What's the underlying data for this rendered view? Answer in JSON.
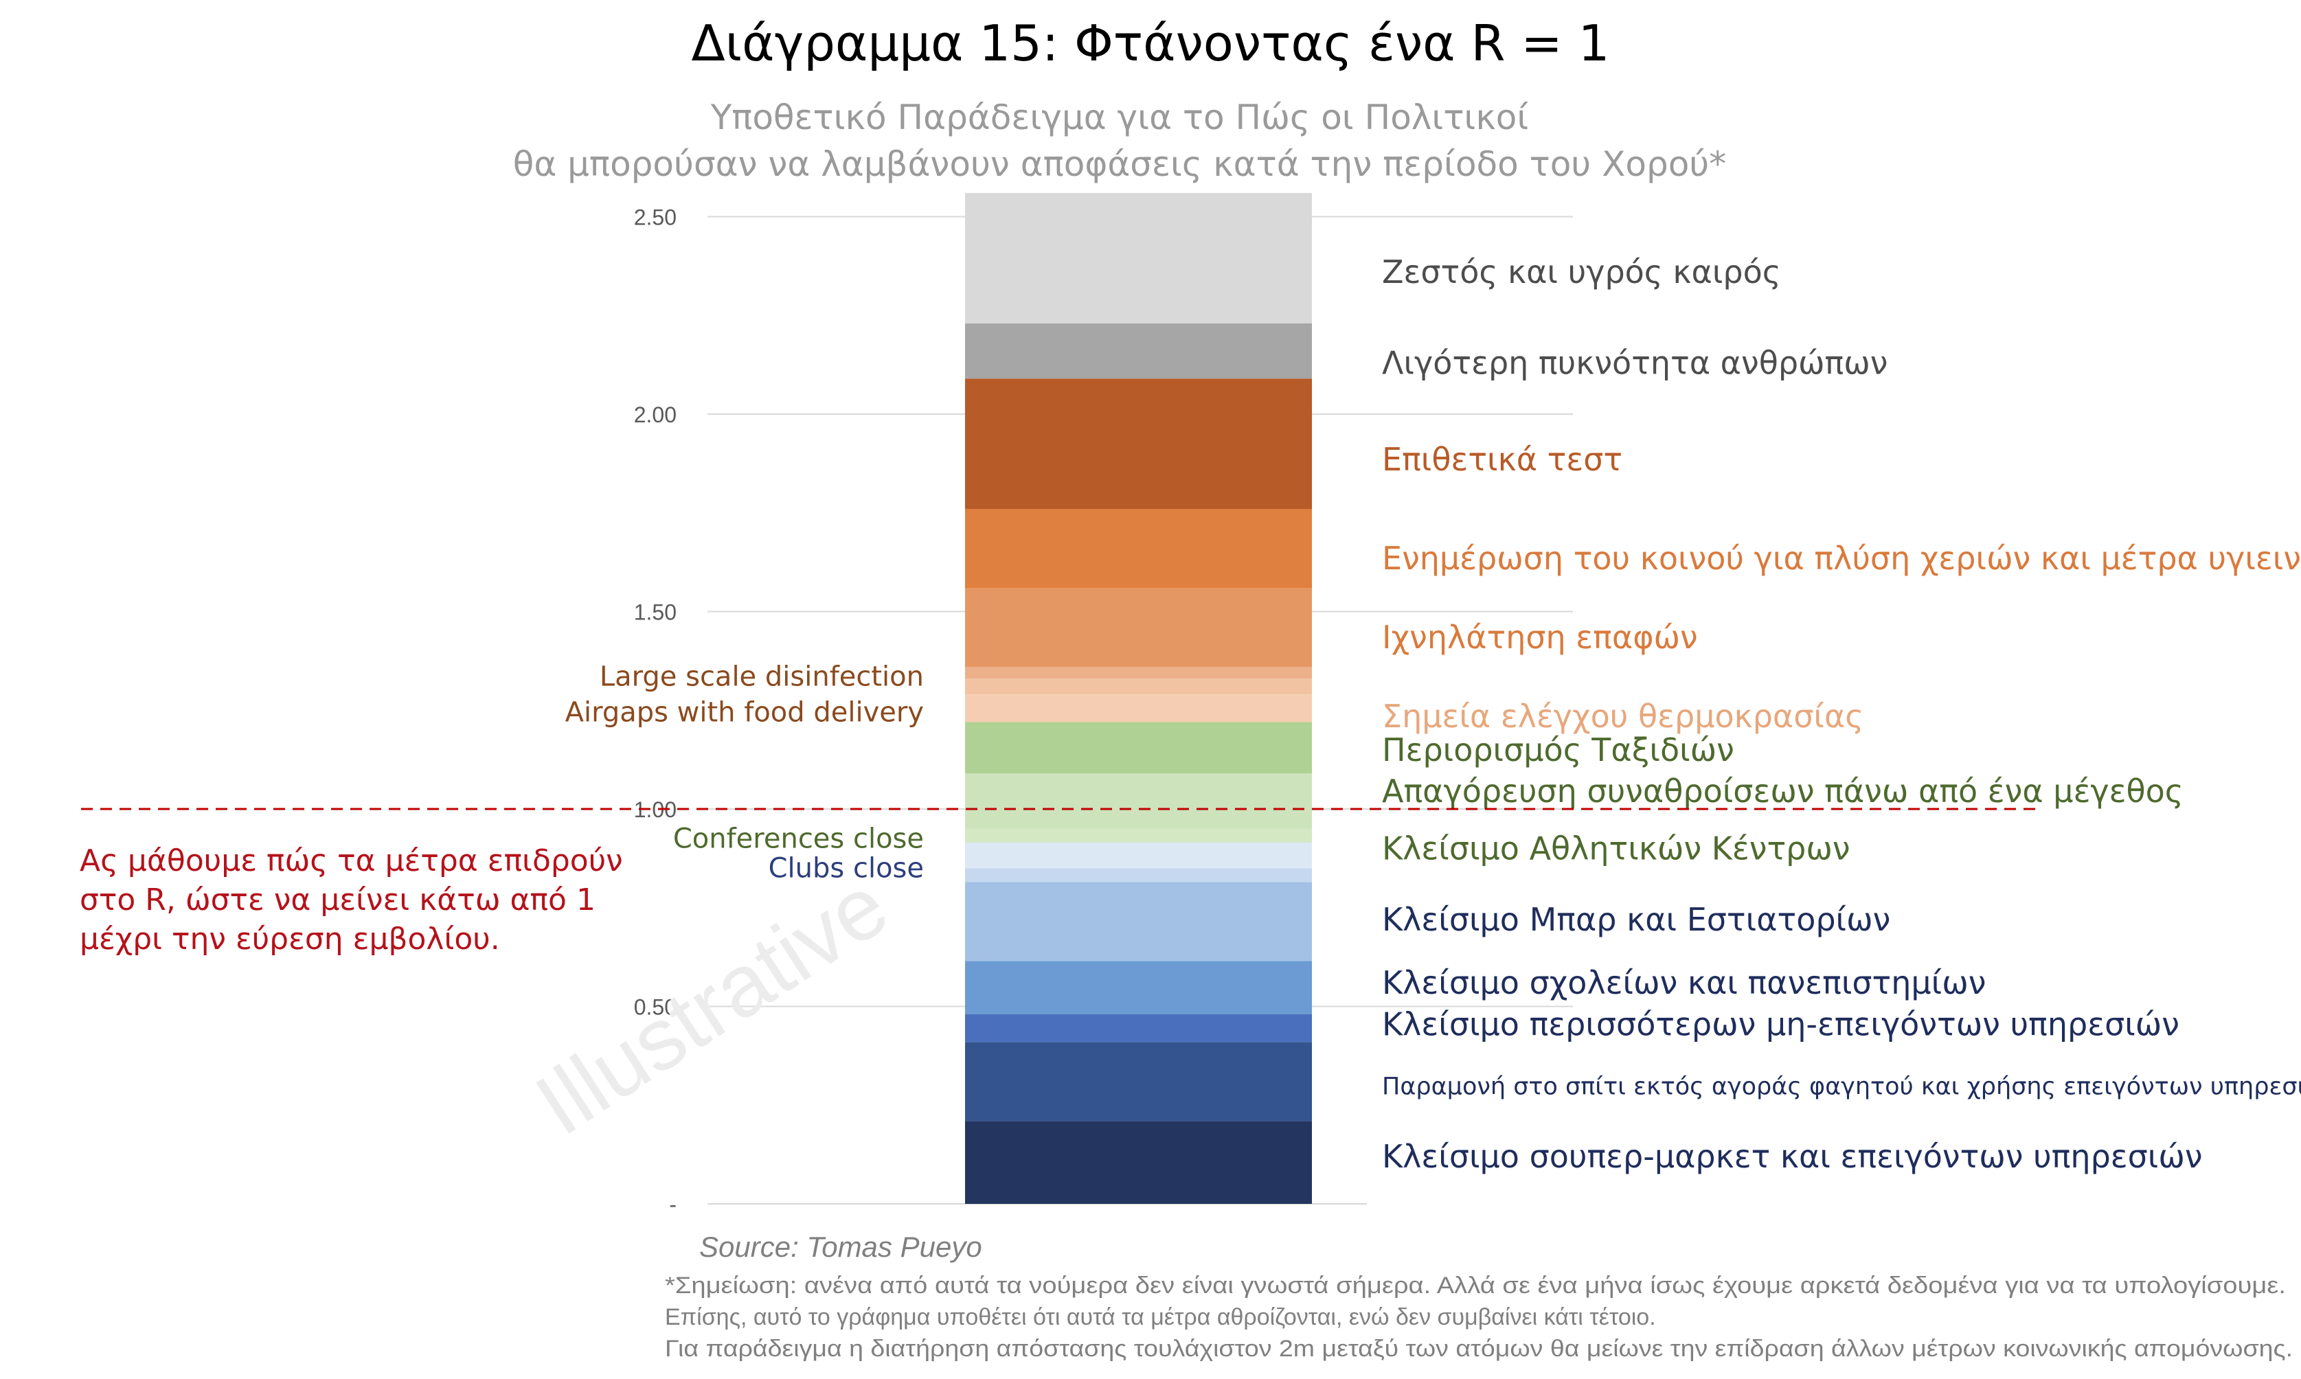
{
  "chart_data": {
    "type": "bar",
    "subtype": "stacked-single-column",
    "title": "Διάγραμμα 15: Φτάνοντας ένα R = 1",
    "subtitle_lines": [
      "Υποθετικό Παράδειγμα για το Πώς οι Πολιτικοί",
      "θα μπορούσαν να λαμβάνουν αποφάσεις κατά την περίοδο του Χορού*"
    ],
    "y_ticks": [
      {
        "value": 0,
        "label": "-"
      },
      {
        "value": 0.5,
        "label": "0.50"
      },
      {
        "value": 1.0,
        "label": "1.00"
      },
      {
        "value": 1.5,
        "label": "1.50"
      },
      {
        "value": 2.0,
        "label": "2.00"
      },
      {
        "value": 2.5,
        "label": "2.50"
      }
    ],
    "ylim": [
      0,
      2.5
    ],
    "grid": true,
    "threshold": {
      "value": 1.0,
      "color": "#c00000"
    },
    "segments": [
      {
        "name": "Κλείσιμο σουπερ-μαρκετ και επειγόντων υπηρεσιών",
        "from": 0.0,
        "to": 0.21,
        "color": "#24365f",
        "label_color": "#1f2d5c",
        "side": "right",
        "label_value": 0.12,
        "small": false
      },
      {
        "name": "Παραμονή στο σπίτι εκτός αγοράς φαγητού και χρήσης επειγόντων υπηρεσιών",
        "from": 0.21,
        "to": 0.41,
        "color": "#34548f",
        "label_color": "#1f2d5c",
        "side": "right",
        "label_value": 0.305,
        "small": true
      },
      {
        "name": "Κλείσιμο περισσότερων μη-επειγόντων υπηρεσιών",
        "from": 0.41,
        "to": 0.48,
        "color": "#4a70bd",
        "label_color": "#1f2d5c",
        "side": "right",
        "label_value": 0.455,
        "small": false
      },
      {
        "name": "Κλείσιμο σχολείων και πανεπιστημίων",
        "from": 0.48,
        "to": 0.615,
        "color": "#6b9bd2",
        "label_color": "#1f2d5c",
        "side": "right",
        "label_value": 0.56,
        "small": false
      },
      {
        "name": "Κλείσιμο Μπαρ και Εστιατορίων",
        "from": 0.615,
        "to": 0.815,
        "color": "#a3c1e5",
        "label_color": "#1f2d5c",
        "side": "right",
        "label_value": 0.72,
        "small": false
      },
      {
        "name": "Clubs close",
        "from": 0.815,
        "to": 0.85,
        "color": "#c5d8f0",
        "label_color": "#2d3f7c",
        "side": "left",
        "label_value": 0.855,
        "small": false
      },
      {
        "name": "Κλείσιμο Αθλητικών Κέντρων",
        "from": 0.85,
        "to": 0.915,
        "color": "#dce8f4",
        "label_color": "#4e6a2e",
        "side": "right",
        "label_value": 0.9,
        "small": false
      },
      {
        "name": "Conferences close",
        "from": 0.915,
        "to": 0.95,
        "color": "#d4e8c4",
        "label_color": "#4e6a2e",
        "side": "left",
        "label_value": 0.93,
        "small": false
      },
      {
        "name": "Απαγόρευση συναθροίσεων πάνω από ένα μέγεθος",
        "from": 0.95,
        "to": 1.09,
        "color": "#cde3bc",
        "label_color": "#4e6a2e",
        "side": "right",
        "label_value": 1.045,
        "small": false
      },
      {
        "name": "Περιορισμός Ταξιδιών",
        "from": 1.09,
        "to": 1.22,
        "color": "#b0d194",
        "label_color": "#4e6a2e",
        "side": "right",
        "label_value": 1.15,
        "small": false
      },
      {
        "name": "Σημεία ελέγχου θερμοκρασίας",
        "from": 1.22,
        "to": 1.29,
        "color": "#f5cdb3",
        "label_color": "#e7a77c",
        "side": "right",
        "label_value": 1.235,
        "small": false
      },
      {
        "name": "Airgaps with food delivery",
        "from": 1.29,
        "to": 1.33,
        "color": "#f2c3a2",
        "label_color": "#8b4a1e",
        "side": "left",
        "label_value": 1.25,
        "small": false
      },
      {
        "name": "Large scale disinfection",
        "from": 1.33,
        "to": 1.36,
        "color": "#ecb08a",
        "label_color": "#8b4a1e",
        "side": "left",
        "label_value": 1.34,
        "small": false
      },
      {
        "name": "Ιχνηλάτηση επαφών",
        "from": 1.36,
        "to": 1.56,
        "color": "#e59763",
        "label_color": "#d97a3c",
        "side": "right",
        "label_value": 1.435,
        "small": false
      },
      {
        "name": "Ενημέρωση του κοινού για πλύση χεριών και μέτρα υγιεινής",
        "from": 1.56,
        "to": 1.76,
        "color": "#df8040",
        "label_color": "#d97a3c",
        "side": "right",
        "label_value": 1.635,
        "small": false
      },
      {
        "name": "Επιθετικά τεστ",
        "from": 1.76,
        "to": 2.09,
        "color": "#b75b28",
        "label_color": "#b75b28",
        "side": "right",
        "label_value": 1.885,
        "small": false
      },
      {
        "name": "Λιγότερη πυκνότητα ανθρώπων",
        "from": 2.09,
        "to": 2.23,
        "color": "#a6a6a6",
        "label_color": "#4d4d4d",
        "side": "right",
        "label_value": 2.13,
        "small": false
      },
      {
        "name": "Ζεστός και υγρός καιρός",
        "from": 2.23,
        "to": 2.56,
        "color": "#d9d9d9",
        "label_color": "#4d4d4d",
        "side": "right",
        "label_value": 2.36,
        "small": false
      }
    ],
    "annotation_lines": [
      "Ας μάθουμε πώς τα μέτρα επιδρούν",
      "στο R, ώστε να μείνει κάτω από 1",
      "μέχρι την εύρεση εμβολίου."
    ],
    "watermark": "Illustrative",
    "source": "Source: Tomas Pueyo",
    "footnote_lines": [
      "*Σημείωση: ανένα από αυτά τα νούμερα δεν είναι γνωστά σήμερα. Αλλά σε ένα μήνα ίσως έχουμε αρκετά δεδομένα για να τα υπολογίσουμε.",
      "Επίσης, αυτό το γράφημα υποθέτει ότι αυτά τα μέτρα αθροίζονται, ενώ δεν συμβαίνει κάτι τέτοιο.",
      "Για παράδειγμα η διατήρηση απόστασης τουλάχιστον 2m μεταξύ των ατόμων θα μείωνε την επίδραση άλλων μέτρων κοινωνικής απομόνωσης."
    ]
  }
}
